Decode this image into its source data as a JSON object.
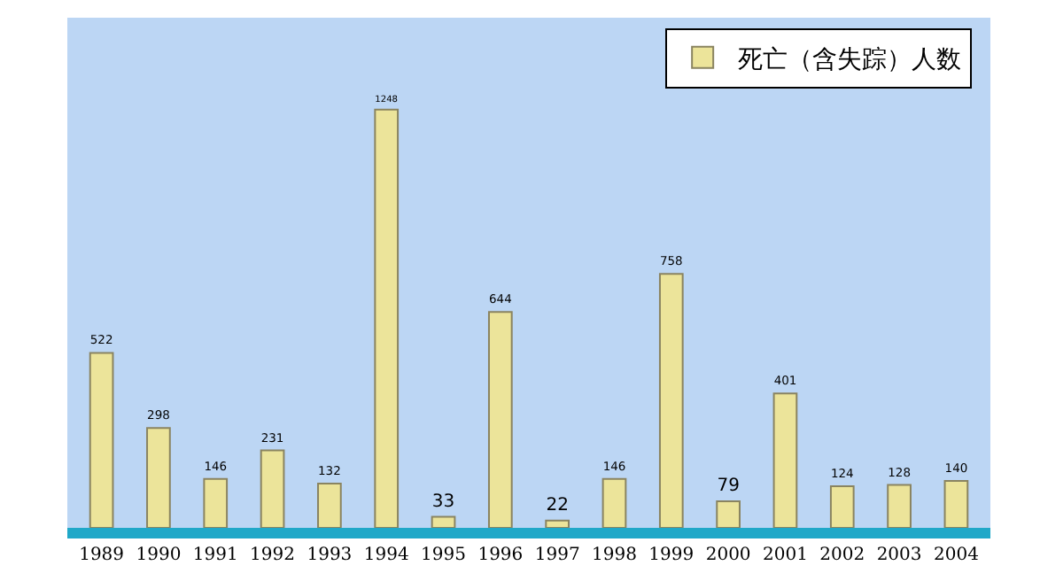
{
  "chart_data": {
    "type": "bar",
    "categories": [
      "1989",
      "1990",
      "1991",
      "1992",
      "1993",
      "1994",
      "1995",
      "1996",
      "1997",
      "1998",
      "1999",
      "2000",
      "2001",
      "2002",
      "2003",
      "2004"
    ],
    "series": [
      {
        "name": "死亡（含失踪）人数",
        "color": "#ece49a",
        "values": [
          522,
          298,
          146,
          231,
          132,
          1248,
          33,
          644,
          22,
          146,
          758,
          79,
          401,
          124,
          128,
          140
        ]
      }
    ],
    "data_labels": true,
    "legend": "top right",
    "grid": false
  }
}
